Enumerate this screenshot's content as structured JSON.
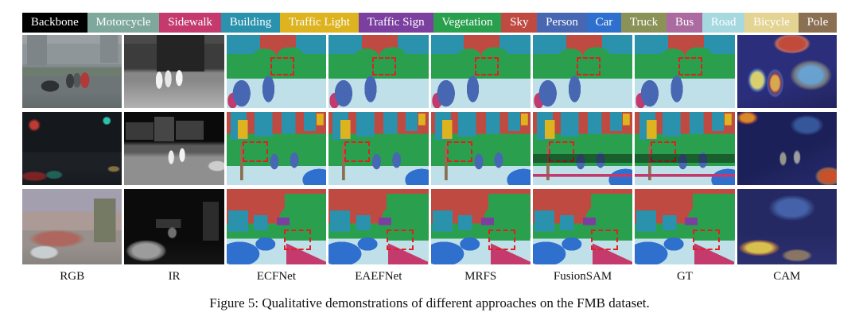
{
  "figure": {
    "caption": "Figure 5: Qualitative demonstrations of different approaches on the FMB dataset."
  },
  "legend": {
    "items": [
      {
        "label": "Backbone",
        "color": "#000000",
        "text_color": "#ffffff"
      },
      {
        "label": "Motorcycle",
        "color": "#7fa89d",
        "text_color": "#ffffff"
      },
      {
        "label": "Sidewalk",
        "color": "#c43a6d",
        "text_color": "#ffffff"
      },
      {
        "label": "Building",
        "color": "#2a92ac",
        "text_color": "#ffffff"
      },
      {
        "label": "Traffic Light",
        "color": "#ddb31f",
        "text_color": "#ffffff"
      },
      {
        "label": "Traffic Sign",
        "color": "#7b3fa0",
        "text_color": "#ffffff"
      },
      {
        "label": "Vegetation",
        "color": "#2aa04e",
        "text_color": "#ffffff"
      },
      {
        "label": "Sky",
        "color": "#bf4a41",
        "text_color": "#ffffff"
      },
      {
        "label": "Person",
        "color": "#4767b2",
        "text_color": "#ffffff"
      },
      {
        "label": "Car",
        "color": "#2f6fce",
        "text_color": "#ffffff"
      },
      {
        "label": "Truck",
        "color": "#8b9257",
        "text_color": "#ffffff"
      },
      {
        "label": "Bus",
        "color": "#ab6aa0",
        "text_color": "#ffffff"
      },
      {
        "label": "Road",
        "color": "#a6d8e0",
        "text_color": "#ffffff"
      },
      {
        "label": "Bicycle",
        "color": "#e3d494",
        "text_color": "#ffffff"
      },
      {
        "label": "Pole",
        "color": "#8a6f52",
        "text_color": "#ffffff"
      }
    ]
  },
  "columns": [
    "RGB",
    "IR",
    "ECFNet",
    "EAEFNet",
    "MRFS",
    "FusionSAM",
    "GT",
    "CAM"
  ]
}
